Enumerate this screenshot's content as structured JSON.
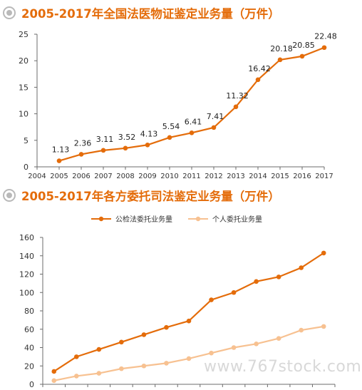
{
  "header1": {
    "title": "2005-2017年全国法医物证鉴定业务量（万件）",
    "icon": "target-bullet-icon"
  },
  "header2": {
    "title": "2005-2017年各方委托司法鉴定业务量（万件）",
    "icon": "target-bullet-icon"
  },
  "watermark": "www.767stock.com",
  "colors": {
    "title": "#e46c0a",
    "series1": "#e46c0a",
    "series2": "#f7c191",
    "axis": "#6b6b6b",
    "bullet": "#b9b9b9"
  },
  "chart_data": [
    {
      "type": "line",
      "x": [
        2005,
        2006,
        2007,
        2008,
        2009,
        2010,
        2011,
        2012,
        2013,
        2014,
        2015,
        2016,
        2017
      ],
      "x_ticks": [
        "2004",
        "2005",
        "2006",
        "2007",
        "2008",
        "2009",
        "2010",
        "2011",
        "2012",
        "2013",
        "2014",
        "2015",
        "2016",
        "2017"
      ],
      "xlim": [
        2004,
        2017
      ],
      "y_ticks": [
        "0",
        "5",
        "10",
        "15",
        "20",
        "25"
      ],
      "ylim": [
        0,
        25
      ],
      "series": [
        {
          "values": [
            1.13,
            2.36,
            3.11,
            3.52,
            4.13,
            5.54,
            6.41,
            7.41,
            11.32,
            16.42,
            20.18,
            20.85,
            22.48
          ],
          "labels": [
            "1.13",
            "2.36",
            "3.11",
            "3.52",
            "4.13",
            "5.54",
            "6.41",
            "7.41",
            "11.32",
            "16.42",
            "20.18",
            "20.85",
            "22.48"
          ]
        }
      ],
      "grid": false
    },
    {
      "type": "line",
      "categories_count": 13,
      "y_ticks": [
        "0",
        "20",
        "40",
        "60",
        "80",
        "100",
        "120",
        "140",
        "160"
      ],
      "ylim": [
        0,
        160
      ],
      "legend_position": "top-center",
      "series": [
        {
          "name": "公检法委托业务量",
          "values": [
            14,
            30,
            38,
            46,
            54,
            62,
            69,
            92,
            100,
            112,
            117,
            127,
            143
          ]
        },
        {
          "name": "个人委托业务量",
          "values": [
            4,
            9,
            12,
            17,
            20,
            23,
            28,
            34,
            40,
            44,
            50,
            59,
            63
          ]
        }
      ],
      "grid": false
    }
  ]
}
